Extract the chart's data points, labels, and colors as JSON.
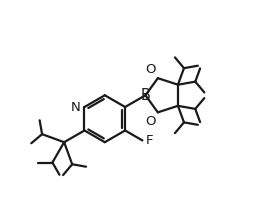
{
  "background": "#ffffff",
  "line_color": "#1a1a1a",
  "line_width": 1.6,
  "font_size": 9.5,
  "figsize": [
    2.8,
    2.14
  ],
  "dpi": 100,
  "xlim": [
    -2.5,
    7.5
  ],
  "ylim": [
    -3.5,
    5.5
  ]
}
